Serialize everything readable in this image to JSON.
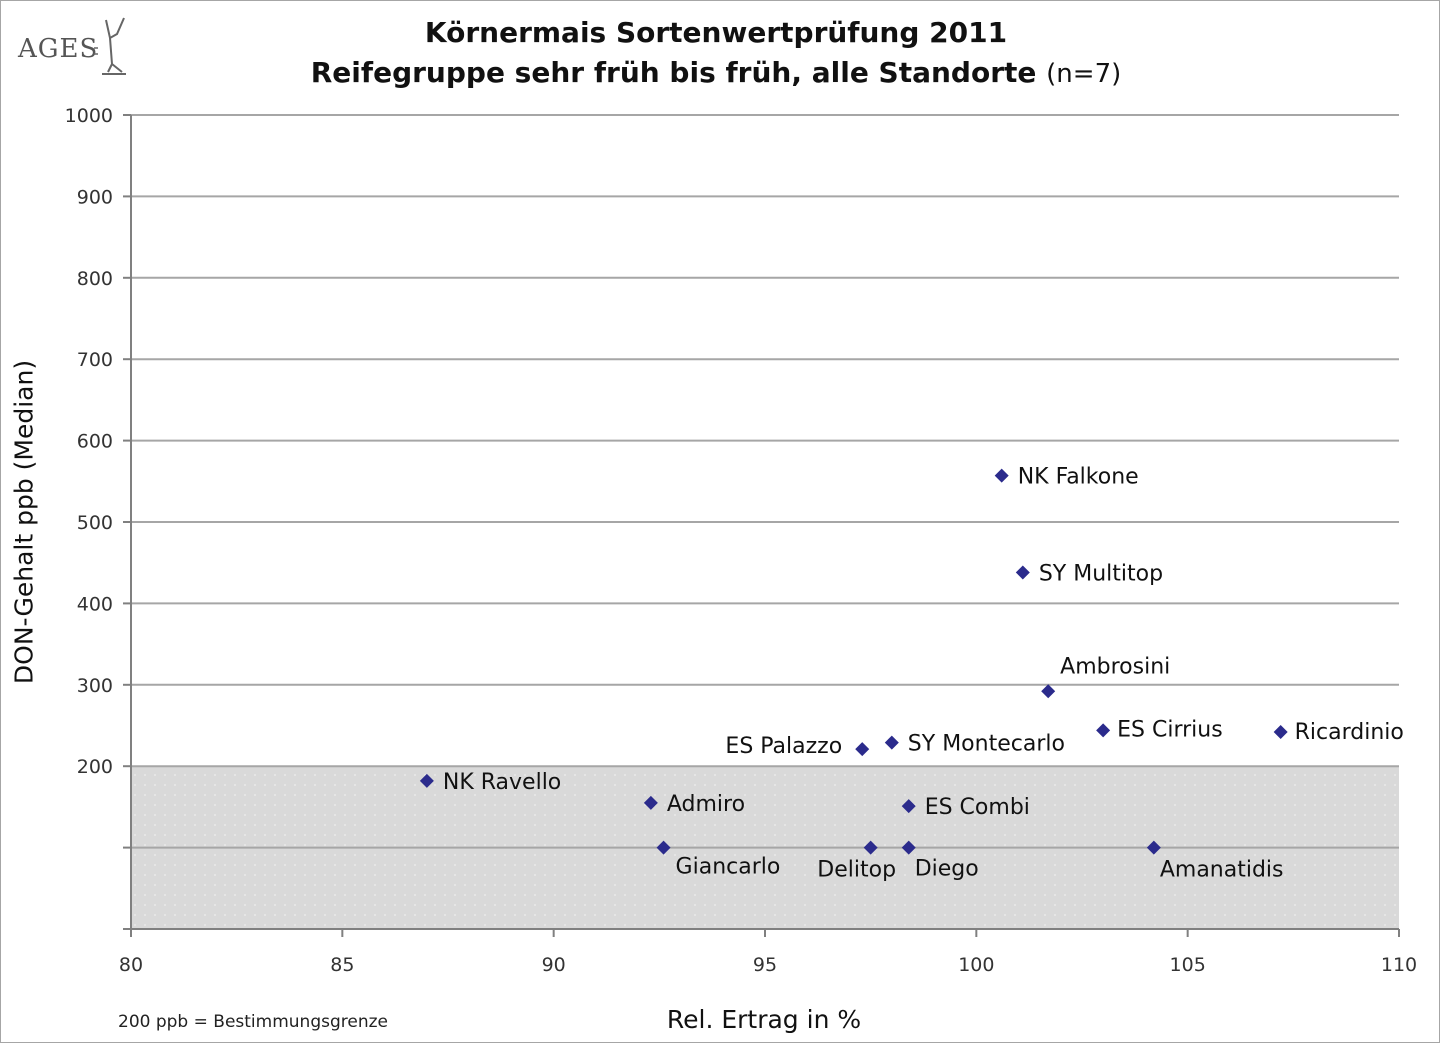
{
  "logo": {
    "text": "AGES"
  },
  "title": {
    "line1": "Körnermais Sortenwertprüfung 2011",
    "line2": "Reifegruppe sehr früh bis früh, alle Standorte",
    "line2_suffix": "(n=7)"
  },
  "footnote": "200 ppb = Bestimmungsgrenze",
  "colors": {
    "marker": "#2b2b8c",
    "grid": "#a6a6a6",
    "shade": "#d9d9d9",
    "axis": "#808080"
  },
  "chart_data": {
    "type": "scatter",
    "title": "Körnermais Sortenwertprüfung 2011 Reifegruppe sehr früh bis früh, alle Standorte (n=7)",
    "xlabel": "Rel. Ertrag in %",
    "ylabel": "DON-Gehalt ppb (Median)",
    "xlim": [
      80,
      110
    ],
    "ylim": [
      0,
      1000
    ],
    "xticks": [
      "80",
      "85",
      "90",
      "95",
      "100",
      "105",
      "110"
    ],
    "yticks": [
      "200",
      "300",
      "400",
      "500",
      "600",
      "700",
      "800",
      "900",
      "1000"
    ],
    "grid": true,
    "shaded_region": {
      "y_from": 0,
      "y_to": 200
    },
    "points": [
      {
        "label": "NK Falkone",
        "x": 100.6,
        "y": 557
      },
      {
        "label": "SY Multitop",
        "x": 101.1,
        "y": 438
      },
      {
        "label": "Ambrosini",
        "x": 101.7,
        "y": 292
      },
      {
        "label": "ES Cirrius",
        "x": 103.0,
        "y": 244
      },
      {
        "label": "Ricardinio",
        "x": 107.2,
        "y": 242
      },
      {
        "label": "ES Palazzo",
        "x": 97.3,
        "y": 221
      },
      {
        "label": "SY Montecarlo",
        "x": 98.0,
        "y": 229
      },
      {
        "label": "NK Ravello",
        "x": 87.0,
        "y": 182
      },
      {
        "label": "Admiro",
        "x": 92.3,
        "y": 155
      },
      {
        "label": "ES Combi",
        "x": 98.4,
        "y": 151
      },
      {
        "label": "Giancarlo",
        "x": 92.6,
        "y": 100
      },
      {
        "label": "Delitop",
        "x": 97.5,
        "y": 100
      },
      {
        "label": "Diego",
        "x": 98.4,
        "y": 100
      },
      {
        "label": "Amanatidis",
        "x": 104.2,
        "y": 100
      }
    ]
  }
}
